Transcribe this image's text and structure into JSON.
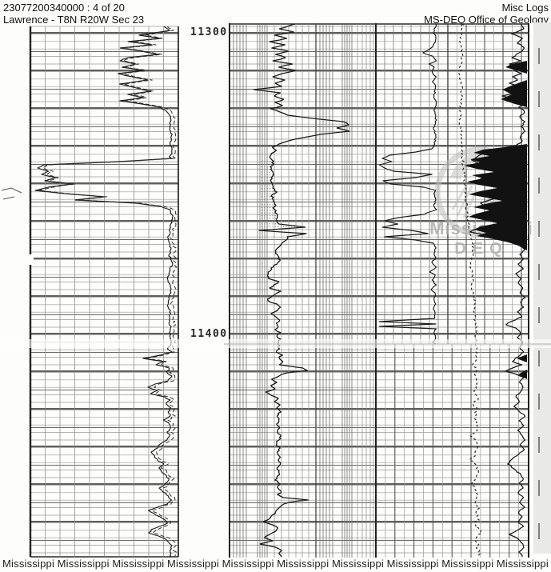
{
  "header": {
    "well_id": "23077200340000 : 4 of 20",
    "location": "Lawrence - T8N R20W Sec 23",
    "log_type": "Misc Logs",
    "agency": "MS-DEQ Office of Geology"
  },
  "depth_labels": [
    "11300",
    "11400"
  ],
  "watermark": {
    "logo": "mississippi-deq-seal",
    "line1": "Mississippi",
    "line2": "DEQ"
  },
  "footer": {
    "items": [
      "Mississippi",
      "Mississippi",
      "Mississippi",
      "Mississippi",
      "Mississippi",
      "Mississippi",
      "Mississippi",
      "Mississippi",
      "Mississippi",
      "Mississippi"
    ]
  },
  "colors": {
    "paper": "#fdfdfb",
    "ink": "#1b1b1b",
    "grid_light": "#9a9a9a",
    "grid_medium": "#6a6a6a",
    "grid_heavy": "#2b2b2b",
    "margin": "#e9e9e7",
    "watermark_gray": "#bdbdbd",
    "watermark_text": "#ababab"
  }
}
